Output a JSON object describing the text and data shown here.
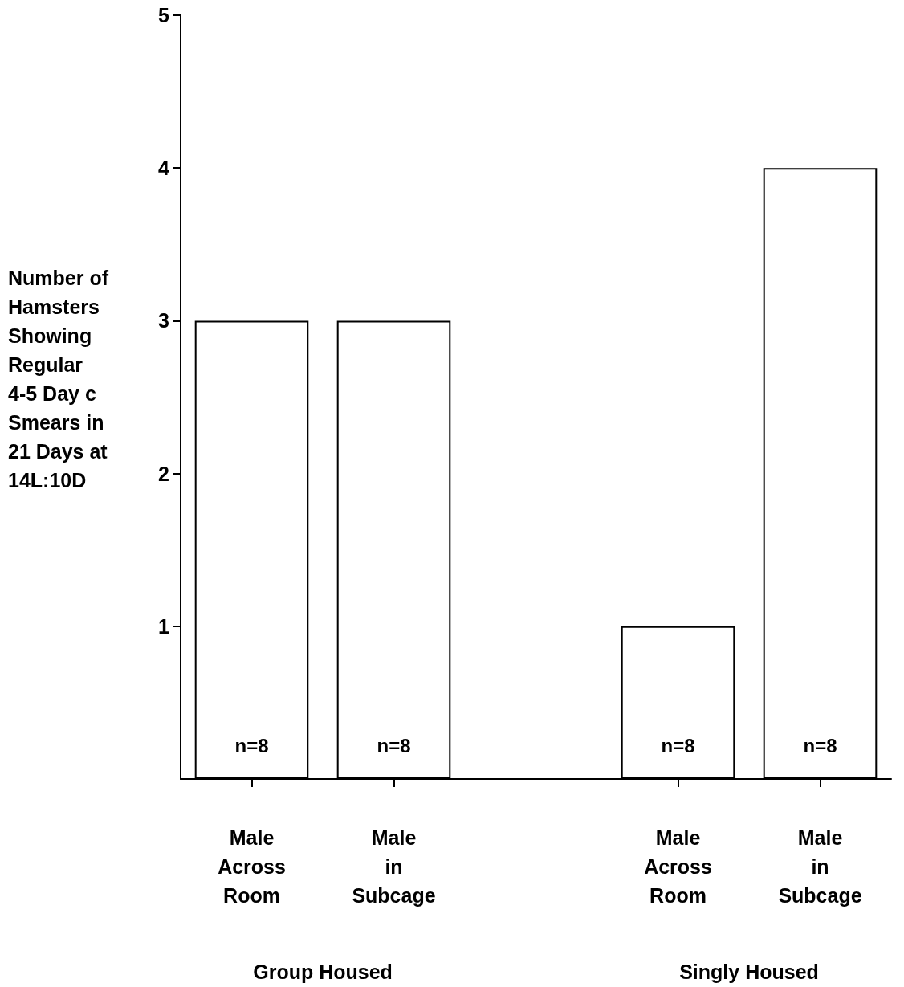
{
  "chart_data": {
    "type": "bar",
    "ylabel": "Number of\nHamsters\nShowing\nRegular\n4-5 Day c\nSmears in\n21 Days at\n14L:10D",
    "categories": [
      "Male\nAcross\nRoom",
      "Male\nin\nSubcage",
      null,
      "Male\nAcross\nRoom",
      "Male\nin\nSubcage"
    ],
    "values": [
      3,
      3,
      null,
      1,
      4
    ],
    "color": "#ffffff",
    "ylim": [
      0,
      5
    ],
    "yticks": [
      1,
      2,
      3,
      4,
      5
    ],
    "grid": false,
    "annotations": [
      "n=8",
      "n=8",
      "n=8",
      "n=8",
      "Group Housed",
      "Singly Housed"
    ]
  }
}
